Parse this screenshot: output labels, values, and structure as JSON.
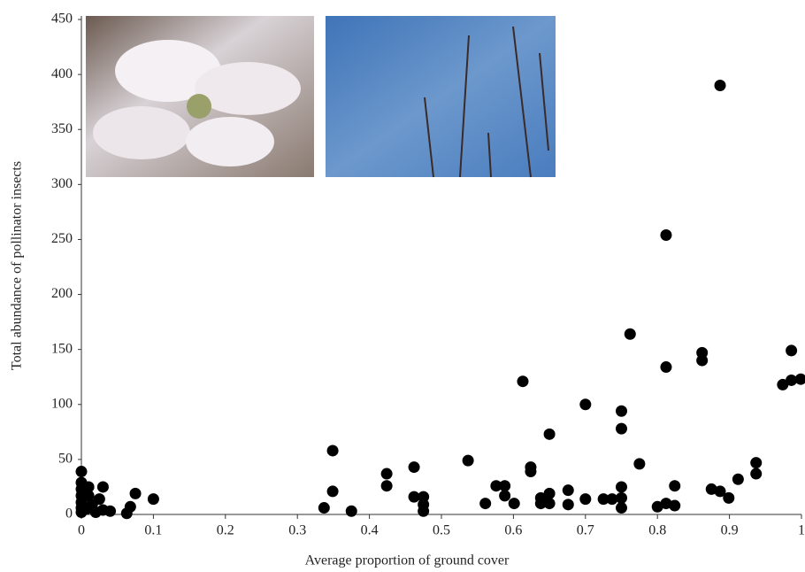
{
  "chart_data": {
    "type": "scatter",
    "x_label": "Average proportion of ground cover",
    "y_label": "Total abundance of pollinator insects",
    "x": [
      0,
      0,
      0,
      0,
      0,
      0,
      0,
      0.007,
      0.01,
      0.01,
      0.015,
      0.02,
      0.025,
      0.03,
      0.03,
      0.04,
      0.063,
      0.068,
      0.075,
      0.1,
      0.337,
      0.349,
      0.349,
      0.375,
      0.424,
      0.424,
      0.462,
      0.462,
      0.475,
      0.475,
      0.475,
      0.537,
      0.561,
      0.576,
      0.588,
      0.588,
      0.601,
      0.613,
      0.624,
      0.624,
      0.638,
      0.638,
      0.65,
      0.65,
      0.65,
      0.676,
      0.676,
      0.7,
      0.7,
      0.725,
      0.737,
      0.75,
      0.75,
      0.75,
      0.75,
      0.75,
      0.762,
      0.775,
      0.8,
      0.812,
      0.812,
      0.812,
      0.824,
      0.824,
      0.862,
      0.862,
      0.875,
      0.887,
      0.887,
      0.899,
      0.912,
      0.937,
      0.937,
      0.974,
      0.986,
      0.986,
      0.999
    ],
    "values": [
      39,
      29,
      23,
      17,
      11,
      6,
      2,
      5,
      25,
      17,
      9,
      2,
      14,
      25,
      4,
      3,
      1,
      7,
      19,
      14,
      6,
      58,
      21,
      3,
      37,
      26,
      43,
      16,
      16,
      9,
      3,
      49,
      10,
      26,
      26,
      17,
      10,
      121,
      43,
      39,
      15,
      10,
      73,
      19,
      10,
      22,
      9,
      100,
      14,
      14,
      14,
      94,
      78,
      25,
      15,
      6,
      164,
      46,
      7,
      10,
      254,
      134,
      26,
      8,
      147,
      140,
      23,
      390,
      21,
      15,
      32,
      47,
      37,
      118,
      122,
      149,
      123
    ],
    "color": "#000000",
    "xlim": [
      0,
      1
    ],
    "xticks": [
      0,
      0.1,
      0.2,
      0.3,
      0.4,
      0.5,
      0.6,
      0.7,
      0.8,
      0.9,
      1
    ],
    "ylim": [
      0,
      450
    ],
    "yticks": [
      0,
      50,
      100,
      150,
      200,
      250,
      300,
      350,
      400,
      450
    ]
  }
}
